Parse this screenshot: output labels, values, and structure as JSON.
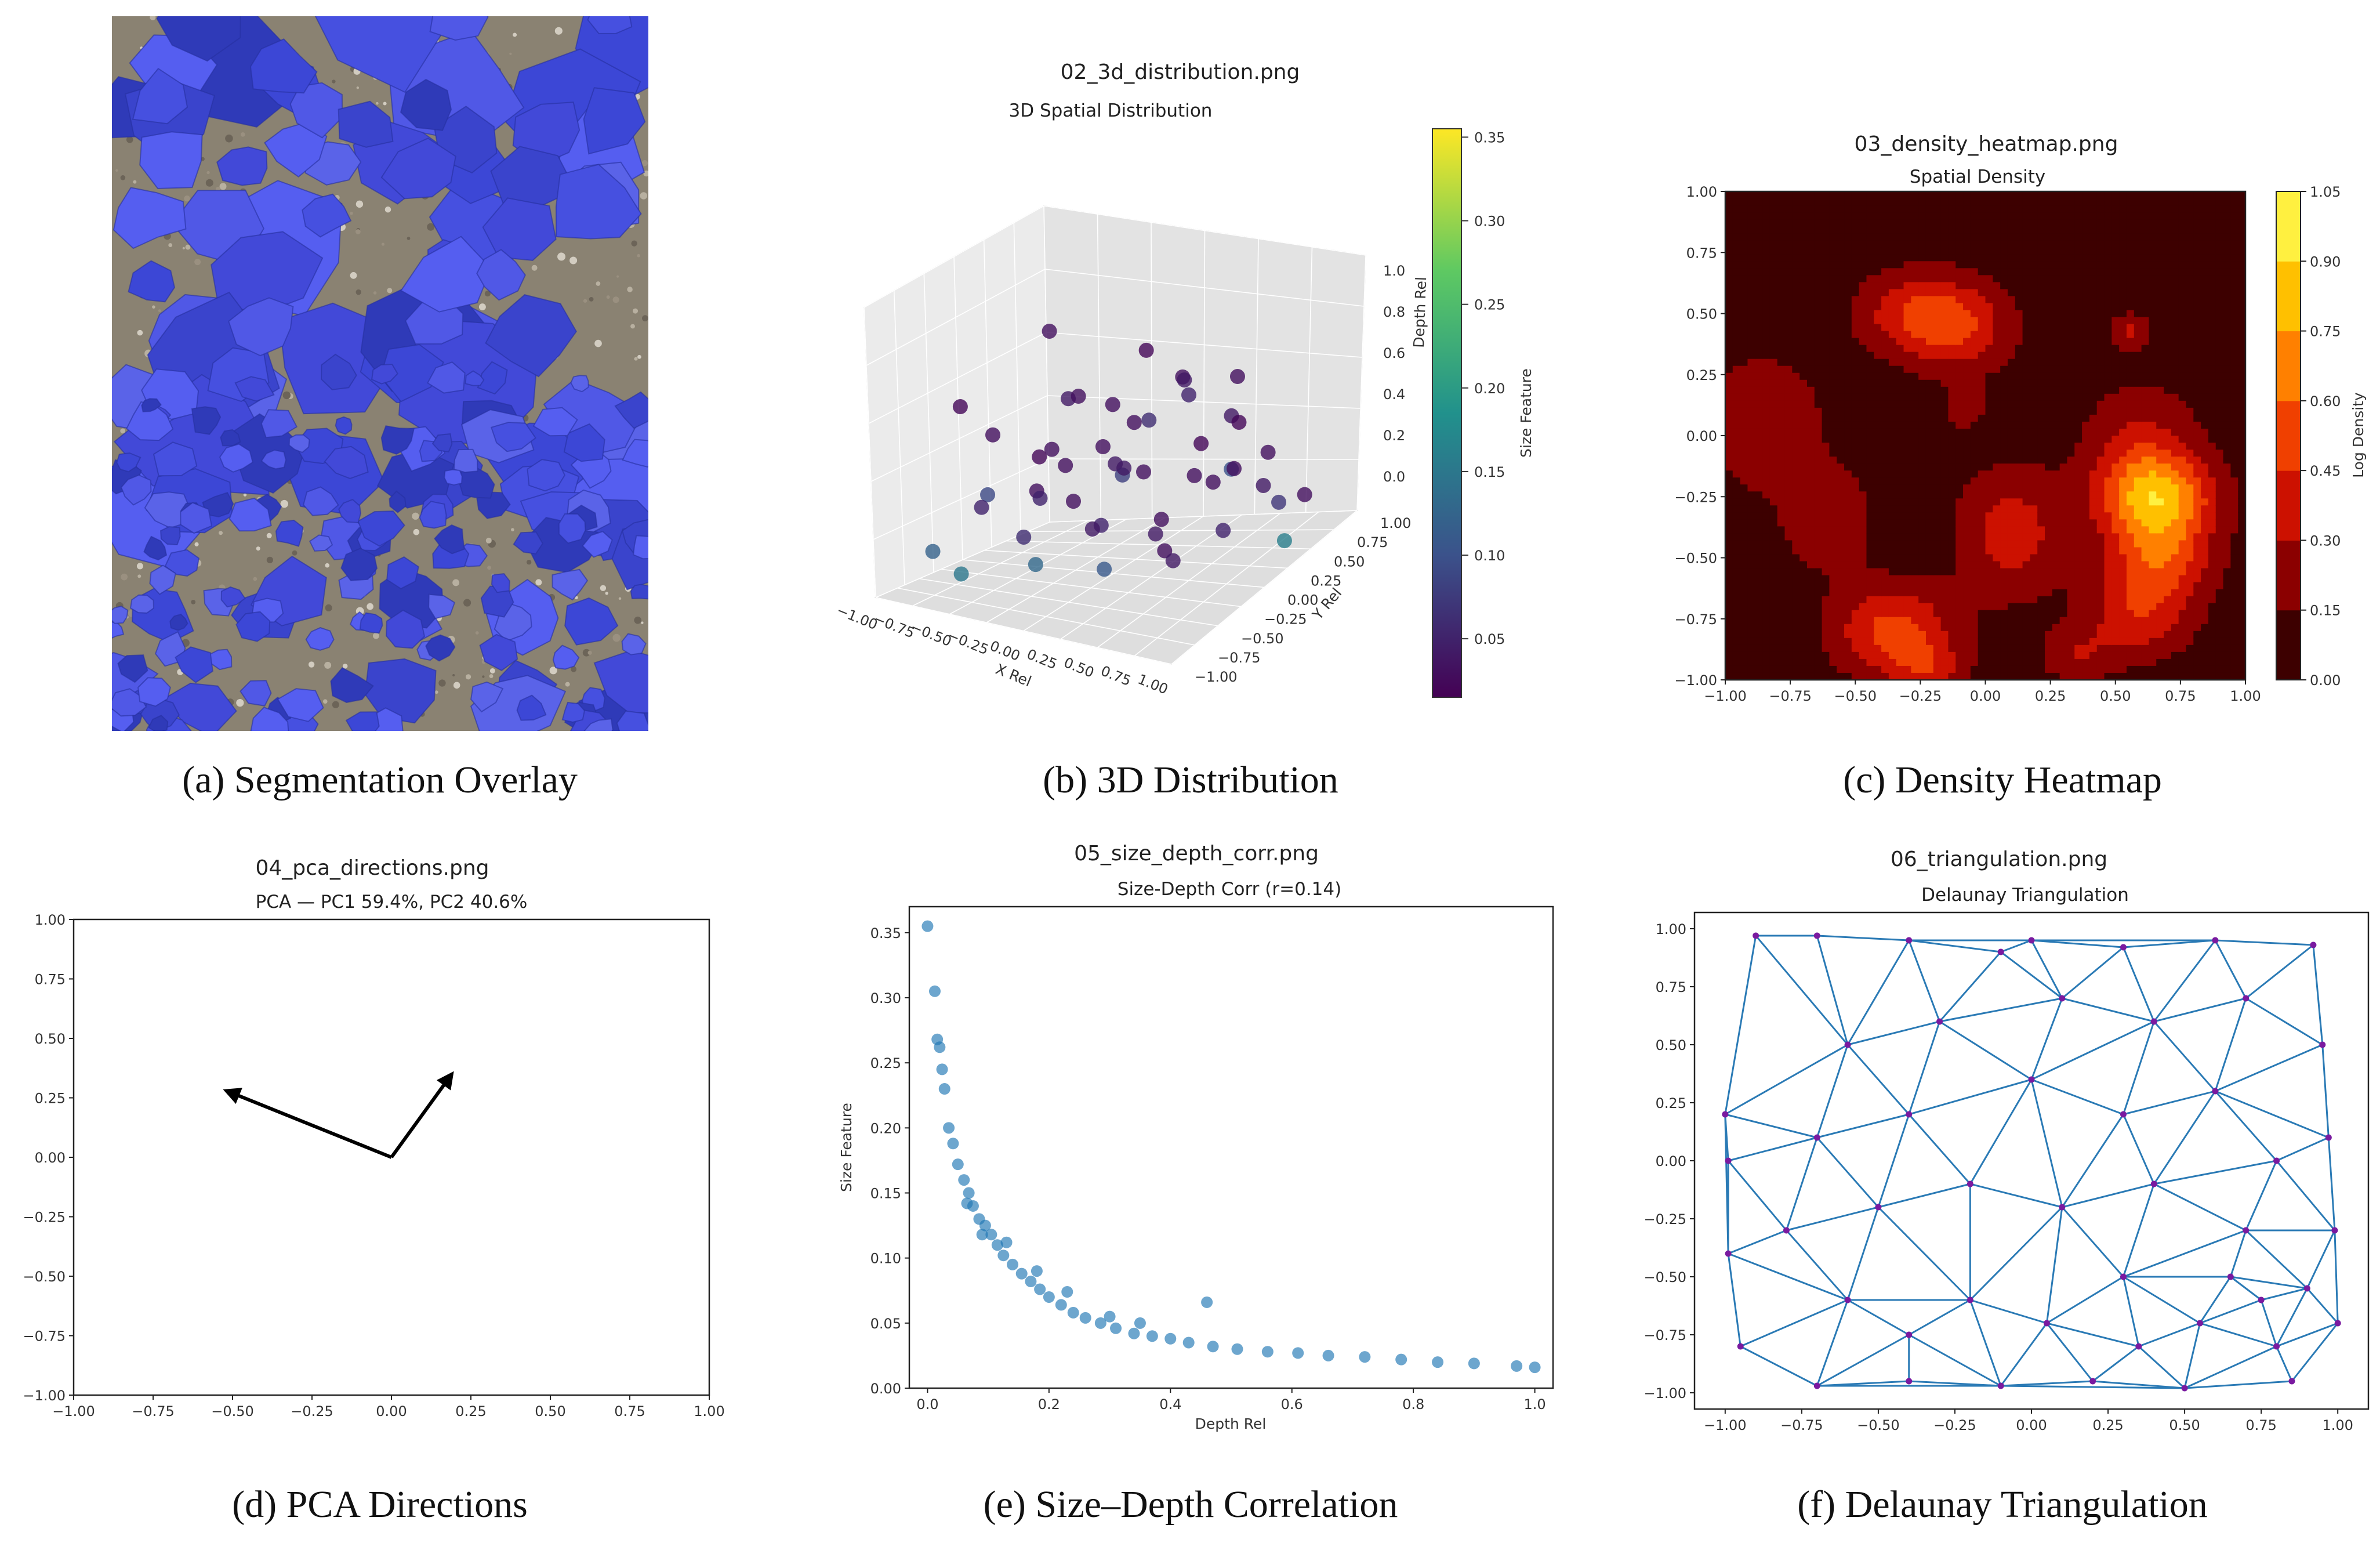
{
  "captions": {
    "a": "(a) Segmentation Overlay",
    "b": "(b) 3D Distribution",
    "c": "(c) Density Heatmap",
    "d": "(d) PCA Directions",
    "e": "(e) Size–Depth Correlation",
    "f": "(f) Delaunay Triangulation"
  },
  "colors": {
    "rock_overlay": "#4b55e0",
    "scatter_blue": "#1f77b4",
    "triangulation_edge": "#2a7ab5",
    "triangulation_node": "#7a1aa0"
  },
  "panel_b": {
    "file_title": "02_3d_distribution.png",
    "title": "3D Spatial Distribution",
    "x_label": "X Rel",
    "y_label": "Y Rel",
    "z_label": "Depth Rel",
    "colorbar_label": "Size Feature",
    "x_ticks": [
      "−1.00",
      "−0.75",
      "−0.50",
      "−0.25",
      "0.00",
      "0.25",
      "0.50",
      "0.75",
      "1.00"
    ],
    "y_ticks": [
      "−1.00",
      "−0.75",
      "−0.50",
      "−0.25",
      "0.00",
      "0.25",
      "0.50",
      "0.75",
      "1.00"
    ],
    "z_ticks": [
      "0.0",
      "0.2",
      "0.4",
      "0.6",
      "0.8",
      "1.0"
    ],
    "colorbar_ticks": [
      "0.05",
      "0.10",
      "0.15",
      "0.20",
      "0.25",
      "0.30",
      "0.35"
    ],
    "colorbar_range": [
      0.015,
      0.355
    ]
  },
  "panel_c": {
    "file_title": "03_density_heatmap.png",
    "title": "Spatial Density",
    "colorbar_label": "Log Density",
    "x_ticks": [
      "−1.00",
      "−0.75",
      "−0.50",
      "−0.25",
      "0.00",
      "0.25",
      "0.50",
      "0.75",
      "1.00"
    ],
    "y_ticks": [
      "1.00",
      "0.75",
      "0.50",
      "0.25",
      "0.00",
      "−0.25",
      "−0.50",
      "−0.75",
      "−1.00"
    ],
    "colorbar_ticks": [
      "0.00",
      "0.15",
      "0.30",
      "0.45",
      "0.60",
      "0.75",
      "0.90",
      "1.05"
    ],
    "levels": [
      0.0,
      0.15,
      0.3,
      0.45,
      0.6,
      0.75,
      0.9,
      1.05
    ],
    "level_colors": [
      "#3d0000",
      "#8b0000",
      "#cc1100",
      "#f04000",
      "#ff8000",
      "#ffc000",
      "#fff040",
      "#fffbb0"
    ]
  },
  "panel_d": {
    "file_title": "04_pca_directions.png",
    "title": "PCA — PC1 59.4%, PC2 40.6%",
    "x_ticks": [
      "−1.00",
      "−0.75",
      "−0.50",
      "−0.25",
      "0.00",
      "0.25",
      "0.50",
      "0.75",
      "1.00"
    ],
    "y_ticks": [
      "1.00",
      "0.75",
      "0.50",
      "0.25",
      "0.00",
      "−0.25",
      "−0.50",
      "−0.75",
      "−1.00"
    ],
    "xlim": [
      -1,
      1
    ],
    "ylim": [
      -1,
      1
    ],
    "vectors": [
      {
        "dx": -0.52,
        "dy": 0.28
      },
      {
        "dx": 0.19,
        "dy": 0.35
      }
    ]
  },
  "panel_e": {
    "file_title": "05_size_depth_corr.png",
    "title": "Size-Depth Corr (r=0.14)",
    "x_label": "Depth Rel",
    "y_label": "Size Feature",
    "x_ticks": [
      "0.0",
      "0.2",
      "0.4",
      "0.6",
      "0.8",
      "1.0"
    ],
    "y_ticks": [
      "0.35",
      "0.30",
      "0.25",
      "0.20",
      "0.15",
      "0.10",
      "0.05",
      "0.00"
    ],
    "xlim": [
      -0.03,
      1.03
    ],
    "ylim": [
      0,
      0.37
    ]
  },
  "panel_f": {
    "file_title": "06_triangulation.png",
    "title": "Delaunay Triangulation",
    "x_ticks": [
      "−1.00",
      "−0.75",
      "−0.50",
      "−0.25",
      "0.00",
      "0.25",
      "0.50",
      "0.75",
      "1.00"
    ],
    "y_ticks": [
      "1.00",
      "0.75",
      "0.50",
      "0.25",
      "0.00",
      "−0.25",
      "−0.50",
      "−0.75",
      "−1.00"
    ],
    "xlim": [
      -1.1,
      1.1
    ],
    "ylim": [
      -1.07,
      1.07
    ]
  },
  "chart_data": [
    {
      "type": "scatter",
      "panel": "b",
      "title": "3D Spatial Distribution",
      "xlabel": "X Rel",
      "ylabel": "Y Rel",
      "zlabel": "Depth Rel",
      "xlim": [
        -1,
        1
      ],
      "ylim": [
        -1,
        1
      ],
      "zlim": [
        0,
        1
      ],
      "colorbar": {
        "label": "Size Feature",
        "range": [
          0.015,
          0.355
        ]
      },
      "points": [
        {
          "x": -0.6,
          "y": 0.3,
          "z": 0.95,
          "c": 0.03
        },
        {
          "x": -0.9,
          "y": -0.2,
          "z": 0.7,
          "c": 0.02
        },
        {
          "x": -0.3,
          "y": 0.5,
          "z": 0.6,
          "c": 0.03
        },
        {
          "x": -0.1,
          "y": 0.4,
          "z": 0.55,
          "c": 0.03
        },
        {
          "x": 0.1,
          "y": 0.6,
          "z": 0.7,
          "c": 0.03
        },
        {
          "x": 0.35,
          "y": 0.2,
          "z": 0.8,
          "c": 0.04
        },
        {
          "x": -0.55,
          "y": 0.1,
          "z": 0.45,
          "c": 0.02
        },
        {
          "x": -0.7,
          "y": -0.3,
          "z": 0.3,
          "c": 0.05
        },
        {
          "x": -0.45,
          "y": -0.1,
          "z": 0.35,
          "c": 0.03
        },
        {
          "x": -0.2,
          "y": -0.2,
          "z": 0.5,
          "c": 0.03
        },
        {
          "x": 0.0,
          "y": 0.1,
          "z": 0.4,
          "c": 0.08
        },
        {
          "x": 0.2,
          "y": 0.0,
          "z": 0.45,
          "c": 0.03
        },
        {
          "x": 0.4,
          "y": 0.3,
          "z": 0.5,
          "c": 0.02
        },
        {
          "x": 0.6,
          "y": 0.1,
          "z": 0.4,
          "c": 0.03
        },
        {
          "x": 0.75,
          "y": 0.4,
          "z": 0.3,
          "c": 0.04
        },
        {
          "x": 0.9,
          "y": 0.6,
          "z": 0.2,
          "c": 0.03
        },
        {
          "x": -0.85,
          "y": -0.6,
          "z": 0.15,
          "c": 0.12
        },
        {
          "x": -0.6,
          "y": -0.7,
          "z": 0.1,
          "c": 0.15
        },
        {
          "x": -0.3,
          "y": -0.5,
          "z": 0.25,
          "c": 0.06
        },
        {
          "x": -0.1,
          "y": -0.7,
          "z": 0.2,
          "c": 0.13
        },
        {
          "x": 0.1,
          "y": -0.4,
          "z": 0.3,
          "c": 0.04
        },
        {
          "x": 0.3,
          "y": -0.6,
          "z": 0.2,
          "c": 0.11
        },
        {
          "x": 0.5,
          "y": -0.3,
          "z": 0.35,
          "c": 0.03
        },
        {
          "x": 0.7,
          "y": -0.5,
          "z": 0.25,
          "c": 0.04
        },
        {
          "x": 0.85,
          "y": -0.2,
          "z": 0.3,
          "c": 0.05
        },
        {
          "x": 0.6,
          "y": 0.7,
          "z": 0.35,
          "c": 0.03
        },
        {
          "x": 0.3,
          "y": 0.8,
          "z": 0.25,
          "c": 0.1
        },
        {
          "x": 0.0,
          "y": 0.9,
          "z": 0.2,
          "c": 0.03
        },
        {
          "x": -0.4,
          "y": 0.7,
          "z": 0.3,
          "c": 0.04
        },
        {
          "x": -0.7,
          "y": 0.5,
          "z": 0.4,
          "c": 0.03
        },
        {
          "x": -0.95,
          "y": 0.2,
          "z": 0.25,
          "c": 0.09
        },
        {
          "x": -0.5,
          "y": 0.4,
          "z": 0.2,
          "c": 0.03
        },
        {
          "x": -0.2,
          "y": 0.2,
          "z": 0.15,
          "c": 0.05
        },
        {
          "x": 0.1,
          "y": 0.3,
          "z": 0.1,
          "c": 0.04
        },
        {
          "x": 0.4,
          "y": -0.1,
          "z": 0.15,
          "c": 0.03
        },
        {
          "x": 0.65,
          "y": 0.3,
          "z": 0.6,
          "c": 0.02
        },
        {
          "x": 0.2,
          "y": 0.5,
          "z": 0.65,
          "c": 0.05
        },
        {
          "x": -0.15,
          "y": 0.65,
          "z": 0.5,
          "c": 0.06
        },
        {
          "x": -0.35,
          "y": 0.2,
          "z": 0.7,
          "c": 0.03
        },
        {
          "x": 0.45,
          "y": 0.55,
          "z": 0.55,
          "c": 0.04
        },
        {
          "x": 0.8,
          "y": 0.0,
          "z": 0.5,
          "c": 0.03
        },
        {
          "x": 0.95,
          "y": 0.3,
          "z": 0.1,
          "c": 0.16
        },
        {
          "x": -0.8,
          "y": 0.0,
          "z": 0.55,
          "c": 0.03
        },
        {
          "x": -0.65,
          "y": 0.6,
          "z": 0.6,
          "c": 0.04
        },
        {
          "x": 0.05,
          "y": -0.2,
          "z": 0.6,
          "c": 0.03
        },
        {
          "x": 0.25,
          "y": -0.3,
          "z": 0.55,
          "c": 0.04
        },
        {
          "x": 0.55,
          "y": 0.45,
          "z": 0.75,
          "c": 0.03
        },
        {
          "x": -0.05,
          "y": 0.45,
          "z": 0.85,
          "c": 0.02
        },
        {
          "x": 0.7,
          "y": 0.65,
          "z": 0.15,
          "c": 0.07
        },
        {
          "x": -0.25,
          "y": -0.4,
          "z": 0.4,
          "c": 0.05
        }
      ]
    },
    {
      "type": "heatmap",
      "panel": "c",
      "title": "Spatial Density",
      "colorbar": {
        "label": "Log Density",
        "range": [
          0,
          1.05
        ]
      },
      "xlim": [
        -1,
        1
      ],
      "ylim": [
        -1,
        1
      ],
      "components": [
        {
          "x": 0.67,
          "y": -0.25,
          "sx": 0.15,
          "sy": 0.12,
          "w": 0.55
        },
        {
          "x": 0.67,
          "y": -0.5,
          "sx": 0.14,
          "sy": 0.14,
          "w": 0.45
        },
        {
          "x": 0.6,
          "y": -0.1,
          "sx": 0.15,
          "sy": 0.2,
          "w": 0.3
        },
        {
          "x": 0.58,
          "y": -0.75,
          "sx": 0.14,
          "sy": 0.12,
          "w": 0.3
        },
        {
          "x": -0.35,
          "y": -0.8,
          "sx": 0.16,
          "sy": 0.13,
          "w": 0.45
        },
        {
          "x": -0.22,
          "y": -0.95,
          "sx": 0.1,
          "sy": 0.07,
          "w": 0.25
        },
        {
          "x": -0.1,
          "y": 0.45,
          "sx": 0.14,
          "sy": 0.13,
          "w": 0.38
        },
        {
          "x": -0.3,
          "y": 0.5,
          "sx": 0.14,
          "sy": 0.12,
          "w": 0.3
        },
        {
          "x": 0.1,
          "y": -0.4,
          "sx": 0.14,
          "sy": 0.18,
          "w": 0.33
        },
        {
          "x": 0.56,
          "y": 0.43,
          "sx": 0.05,
          "sy": 0.05,
          "w": 0.25
        },
        {
          "x": -0.08,
          "y": 0.12,
          "sx": 0.05,
          "sy": 0.06,
          "w": 0.22
        },
        {
          "x": -0.85,
          "y": 0.05,
          "sx": 0.18,
          "sy": 0.22,
          "w": 0.18
        },
        {
          "x": -0.6,
          "y": -0.35,
          "sx": 0.12,
          "sy": 0.15,
          "w": 0.2
        },
        {
          "x": 0.35,
          "y": -0.9,
          "sx": 0.1,
          "sy": 0.08,
          "w": 0.2
        }
      ]
    },
    {
      "type": "line",
      "panel": "d",
      "title": "PCA — PC1 59.4%, PC2 40.6%",
      "xlim": [
        -1,
        1
      ],
      "ylim": [
        -1,
        1
      ],
      "vectors": [
        {
          "x0": 0,
          "y0": 0,
          "dx": -0.52,
          "dy": 0.28
        },
        {
          "x0": 0,
          "y0": 0,
          "dx": 0.19,
          "dy": 0.35
        }
      ]
    },
    {
      "type": "scatter",
      "panel": "e",
      "title": "Size-Depth Corr (r=0.14)",
      "xlabel": "Depth Rel",
      "ylabel": "Size Feature",
      "xlim": [
        -0.03,
        1.03
      ],
      "ylim": [
        0,
        0.37
      ],
      "points": [
        {
          "x": 0.0,
          "y": 0.355
        },
        {
          "x": 0.012,
          "y": 0.305
        },
        {
          "x": 0.016,
          "y": 0.268
        },
        {
          "x": 0.02,
          "y": 0.262
        },
        {
          "x": 0.024,
          "y": 0.245
        },
        {
          "x": 0.028,
          "y": 0.23
        },
        {
          "x": 0.035,
          "y": 0.2
        },
        {
          "x": 0.042,
          "y": 0.188
        },
        {
          "x": 0.05,
          "y": 0.172
        },
        {
          "x": 0.06,
          "y": 0.16
        },
        {
          "x": 0.068,
          "y": 0.15
        },
        {
          "x": 0.075,
          "y": 0.14
        },
        {
          "x": 0.085,
          "y": 0.13
        },
        {
          "x": 0.095,
          "y": 0.125
        },
        {
          "x": 0.105,
          "y": 0.118
        },
        {
          "x": 0.115,
          "y": 0.11
        },
        {
          "x": 0.125,
          "y": 0.102
        },
        {
          "x": 0.14,
          "y": 0.095
        },
        {
          "x": 0.155,
          "y": 0.088
        },
        {
          "x": 0.17,
          "y": 0.082
        },
        {
          "x": 0.185,
          "y": 0.076
        },
        {
          "x": 0.2,
          "y": 0.07
        },
        {
          "x": 0.22,
          "y": 0.064
        },
        {
          "x": 0.24,
          "y": 0.058
        },
        {
          "x": 0.26,
          "y": 0.054
        },
        {
          "x": 0.285,
          "y": 0.05
        },
        {
          "x": 0.31,
          "y": 0.046
        },
        {
          "x": 0.34,
          "y": 0.042
        },
        {
          "x": 0.37,
          "y": 0.04
        },
        {
          "x": 0.4,
          "y": 0.038
        },
        {
          "x": 0.43,
          "y": 0.035
        },
        {
          "x": 0.46,
          "y": 0.066
        },
        {
          "x": 0.47,
          "y": 0.032
        },
        {
          "x": 0.51,
          "y": 0.03
        },
        {
          "x": 0.56,
          "y": 0.028
        },
        {
          "x": 0.61,
          "y": 0.027
        },
        {
          "x": 0.66,
          "y": 0.025
        },
        {
          "x": 0.72,
          "y": 0.024
        },
        {
          "x": 0.78,
          "y": 0.022
        },
        {
          "x": 0.84,
          "y": 0.02
        },
        {
          "x": 0.9,
          "y": 0.019
        },
        {
          "x": 0.97,
          "y": 0.017
        },
        {
          "x": 1.0,
          "y": 0.016
        },
        {
          "x": 0.13,
          "y": 0.112
        },
        {
          "x": 0.18,
          "y": 0.09
        },
        {
          "x": 0.23,
          "y": 0.074
        },
        {
          "x": 0.3,
          "y": 0.055
        },
        {
          "x": 0.35,
          "y": 0.05
        },
        {
          "x": 0.09,
          "y": 0.118
        },
        {
          "x": 0.065,
          "y": 0.142
        }
      ]
    },
    {
      "type": "scatter",
      "panel": "f",
      "title": "Delaunay Triangulation",
      "xlim": [
        -1.1,
        1.1
      ],
      "ylim": [
        -1.07,
        1.07
      ],
      "points": [
        {
          "x": -1.0,
          "y": 0.2
        },
        {
          "x": -0.9,
          "y": 0.97
        },
        {
          "x": -0.7,
          "y": 0.97
        },
        {
          "x": -0.4,
          "y": 0.95
        },
        {
          "x": -0.1,
          "y": 0.9
        },
        {
          "x": 0.0,
          "y": 0.95
        },
        {
          "x": 0.3,
          "y": 0.92
        },
        {
          "x": 0.6,
          "y": 0.95
        },
        {
          "x": 0.92,
          "y": 0.93
        },
        {
          "x": 0.95,
          "y": 0.5
        },
        {
          "x": 0.97,
          "y": 0.1
        },
        {
          "x": 0.99,
          "y": -0.3
        },
        {
          "x": 1.0,
          "y": -0.7
        },
        {
          "x": 0.85,
          "y": -0.95
        },
        {
          "x": 0.5,
          "y": -0.98
        },
        {
          "x": 0.2,
          "y": -0.95
        },
        {
          "x": -0.1,
          "y": -0.97
        },
        {
          "x": -0.4,
          "y": -0.95
        },
        {
          "x": -0.7,
          "y": -0.97
        },
        {
          "x": -0.95,
          "y": -0.8
        },
        {
          "x": -0.99,
          "y": -0.4
        },
        {
          "x": -0.99,
          "y": 0.0
        },
        {
          "x": -0.6,
          "y": 0.5
        },
        {
          "x": -0.3,
          "y": 0.6
        },
        {
          "x": 0.1,
          "y": 0.7
        },
        {
          "x": 0.4,
          "y": 0.6
        },
        {
          "x": 0.7,
          "y": 0.7
        },
        {
          "x": -0.7,
          "y": 0.1
        },
        {
          "x": -0.4,
          "y": 0.2
        },
        {
          "x": 0.0,
          "y": 0.35
        },
        {
          "x": 0.3,
          "y": 0.2
        },
        {
          "x": 0.6,
          "y": 0.3
        },
        {
          "x": 0.8,
          "y": 0.0
        },
        {
          "x": -0.8,
          "y": -0.3
        },
        {
          "x": -0.5,
          "y": -0.2
        },
        {
          "x": -0.2,
          "y": -0.1
        },
        {
          "x": 0.1,
          "y": -0.2
        },
        {
          "x": 0.4,
          "y": -0.1
        },
        {
          "x": 0.7,
          "y": -0.3
        },
        {
          "x": 0.65,
          "y": -0.5
        },
        {
          "x": 0.75,
          "y": -0.6
        },
        {
          "x": 0.55,
          "y": -0.7
        },
        {
          "x": 0.8,
          "y": -0.8
        },
        {
          "x": 0.9,
          "y": -0.55
        },
        {
          "x": -0.6,
          "y": -0.6
        },
        {
          "x": -0.4,
          "y": -0.75
        },
        {
          "x": -0.2,
          "y": -0.6
        },
        {
          "x": 0.05,
          "y": -0.7
        },
        {
          "x": 0.3,
          "y": -0.5
        },
        {
          "x": 0.35,
          "y": -0.8
        }
      ]
    }
  ]
}
